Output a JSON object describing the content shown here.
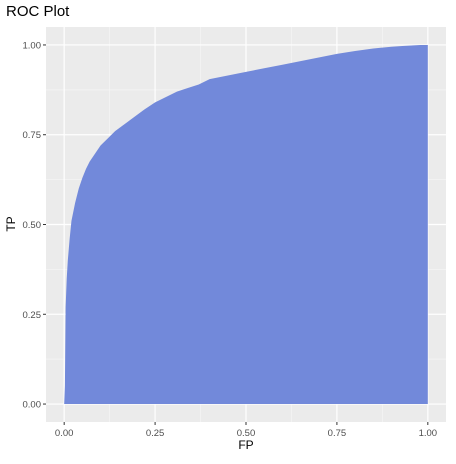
{
  "chart_data": {
    "type": "area",
    "title": "ROC Plot",
    "xlabel": "FP",
    "ylabel": "TP",
    "xlim": [
      -0.05,
      1.05
    ],
    "ylim": [
      -0.05,
      1.05
    ],
    "x_ticks": [
      0.0,
      0.25,
      0.5,
      0.75,
      1.0
    ],
    "x_tick_labels": [
      "0.00",
      "0.25",
      "0.50",
      "0.75",
      "1.00"
    ],
    "y_ticks": [
      0.0,
      0.25,
      0.5,
      0.75,
      1.0
    ],
    "y_tick_labels": [
      "0.00",
      "0.25",
      "0.50",
      "0.75",
      "1.00"
    ],
    "grid": true,
    "colors": {
      "panel_background": "#ebebeb",
      "grid_major": "#ffffff",
      "grid_minor": "#f5f5f5",
      "fill": "#7289da",
      "tick_label": "#4d4d4d"
    },
    "series": [
      {
        "x": [
          0.0,
          0.002,
          0.004,
          0.007,
          0.01,
          0.015,
          0.02,
          0.03,
          0.04,
          0.05,
          0.06,
          0.07,
          0.08,
          0.09,
          0.1,
          0.12,
          0.14,
          0.16,
          0.18,
          0.2,
          0.22,
          0.25,
          0.28,
          0.31,
          0.34,
          0.37,
          0.4,
          0.45,
          0.5,
          0.55,
          0.6,
          0.65,
          0.7,
          0.75,
          0.8,
          0.85,
          0.9,
          0.93,
          0.96,
          0.98,
          1.0
        ],
        "y": [
          0.0,
          0.05,
          0.27,
          0.35,
          0.4,
          0.46,
          0.51,
          0.56,
          0.6,
          0.63,
          0.655,
          0.675,
          0.69,
          0.705,
          0.72,
          0.74,
          0.76,
          0.775,
          0.79,
          0.805,
          0.82,
          0.84,
          0.855,
          0.87,
          0.88,
          0.89,
          0.905,
          0.915,
          0.925,
          0.935,
          0.945,
          0.955,
          0.965,
          0.975,
          0.983,
          0.99,
          0.995,
          0.997,
          0.999,
          1.0,
          1.0
        ]
      }
    ]
  }
}
